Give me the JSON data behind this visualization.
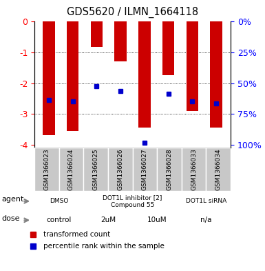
{
  "title": "GDS5620 / ILMN_1664118",
  "samples": [
    "GSM1366023",
    "GSM1366024",
    "GSM1366025",
    "GSM1366026",
    "GSM1366027",
    "GSM1366028",
    "GSM1366033",
    "GSM1366034"
  ],
  "bar_values": [
    -3.7,
    -3.55,
    -0.82,
    -1.3,
    -3.45,
    -1.75,
    -2.9,
    -3.45
  ],
  "blue_values": [
    -2.55,
    -2.6,
    -2.1,
    -2.25,
    -3.95,
    -2.35,
    -2.6,
    -2.65
  ],
  "ylim": [
    -4.1,
    0
  ],
  "yticks_left": [
    0,
    -1,
    -2,
    -3,
    -4
  ],
  "yticks_right": [
    0,
    25,
    50,
    75,
    100
  ],
  "yticks_right_positions": [
    0,
    -1,
    -2,
    -3,
    -4
  ],
  "bar_color": "#CC0000",
  "blue_color": "#0000CC",
  "agent_configs": [
    {
      "label": "DMSO",
      "start": 0,
      "end": 2,
      "color": "#90EE90"
    },
    {
      "label": "DOT1L inhibitor [2]\nCompound 55",
      "start": 2,
      "end": 6,
      "color": "#90EE90"
    },
    {
      "label": "DOT1L siRNA",
      "start": 6,
      "end": 8,
      "color": "#90EE90"
    }
  ],
  "dose_configs": [
    {
      "label": "control",
      "start": 0,
      "end": 2,
      "color": "#EE82EE"
    },
    {
      "label": "2uM",
      "start": 2,
      "end": 4,
      "color": "#EE82EE"
    },
    {
      "label": "10uM",
      "start": 4,
      "end": 6,
      "color": "#EE82EE"
    },
    {
      "label": "n/a",
      "start": 6,
      "end": 8,
      "color": "#EE82EE"
    }
  ],
  "agent_label": "agent",
  "dose_label": "dose",
  "legend_red": "transformed count",
  "legend_blue": "percentile rank within the sample",
  "sample_bg": "#C8C8C8"
}
